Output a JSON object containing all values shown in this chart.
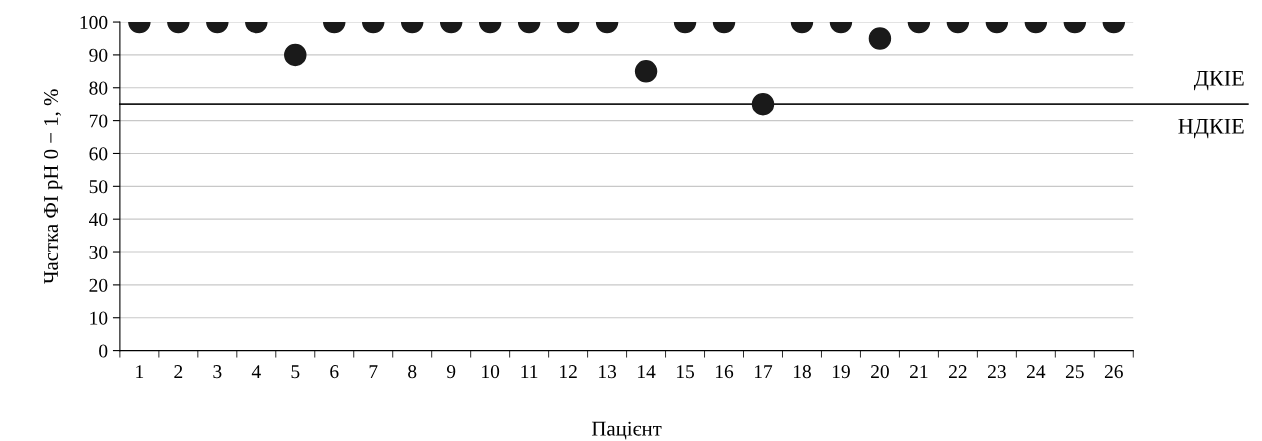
{
  "chart_data": {
    "type": "scatter",
    "ylabel": "Частка ФІ pH 0 − 1, %",
    "xlabel": "Пацієнт",
    "categories": [
      "1",
      "2",
      "3",
      "4",
      "5",
      "6",
      "7",
      "8",
      "9",
      "10",
      "11",
      "12",
      "13",
      "14",
      "15",
      "16",
      "17",
      "18",
      "19",
      "20",
      "21",
      "22",
      "23",
      "24",
      "25",
      "26"
    ],
    "series": [
      {
        "color": "#1a1a1a",
        "values": [
          100,
          100,
          100,
          100,
          90,
          100,
          100,
          100,
          100,
          100,
          100,
          100,
          100,
          85,
          100,
          100,
          75,
          100,
          100,
          95,
          100,
          100,
          100,
          100,
          100,
          100
        ]
      }
    ],
    "ylim": [
      0,
      100
    ],
    "yticks": [
      0,
      10,
      20,
      30,
      40,
      50,
      60,
      70,
      80,
      90,
      100
    ],
    "grid": "y",
    "marker": "circle",
    "ref_lines": [
      {
        "axis": "y",
        "value": 75,
        "label": "ДКІЕ",
        "color": "#1a1a1a",
        "line_style": "solid"
      }
    ],
    "annotations": [
      "НДКІЕ"
    ]
  }
}
